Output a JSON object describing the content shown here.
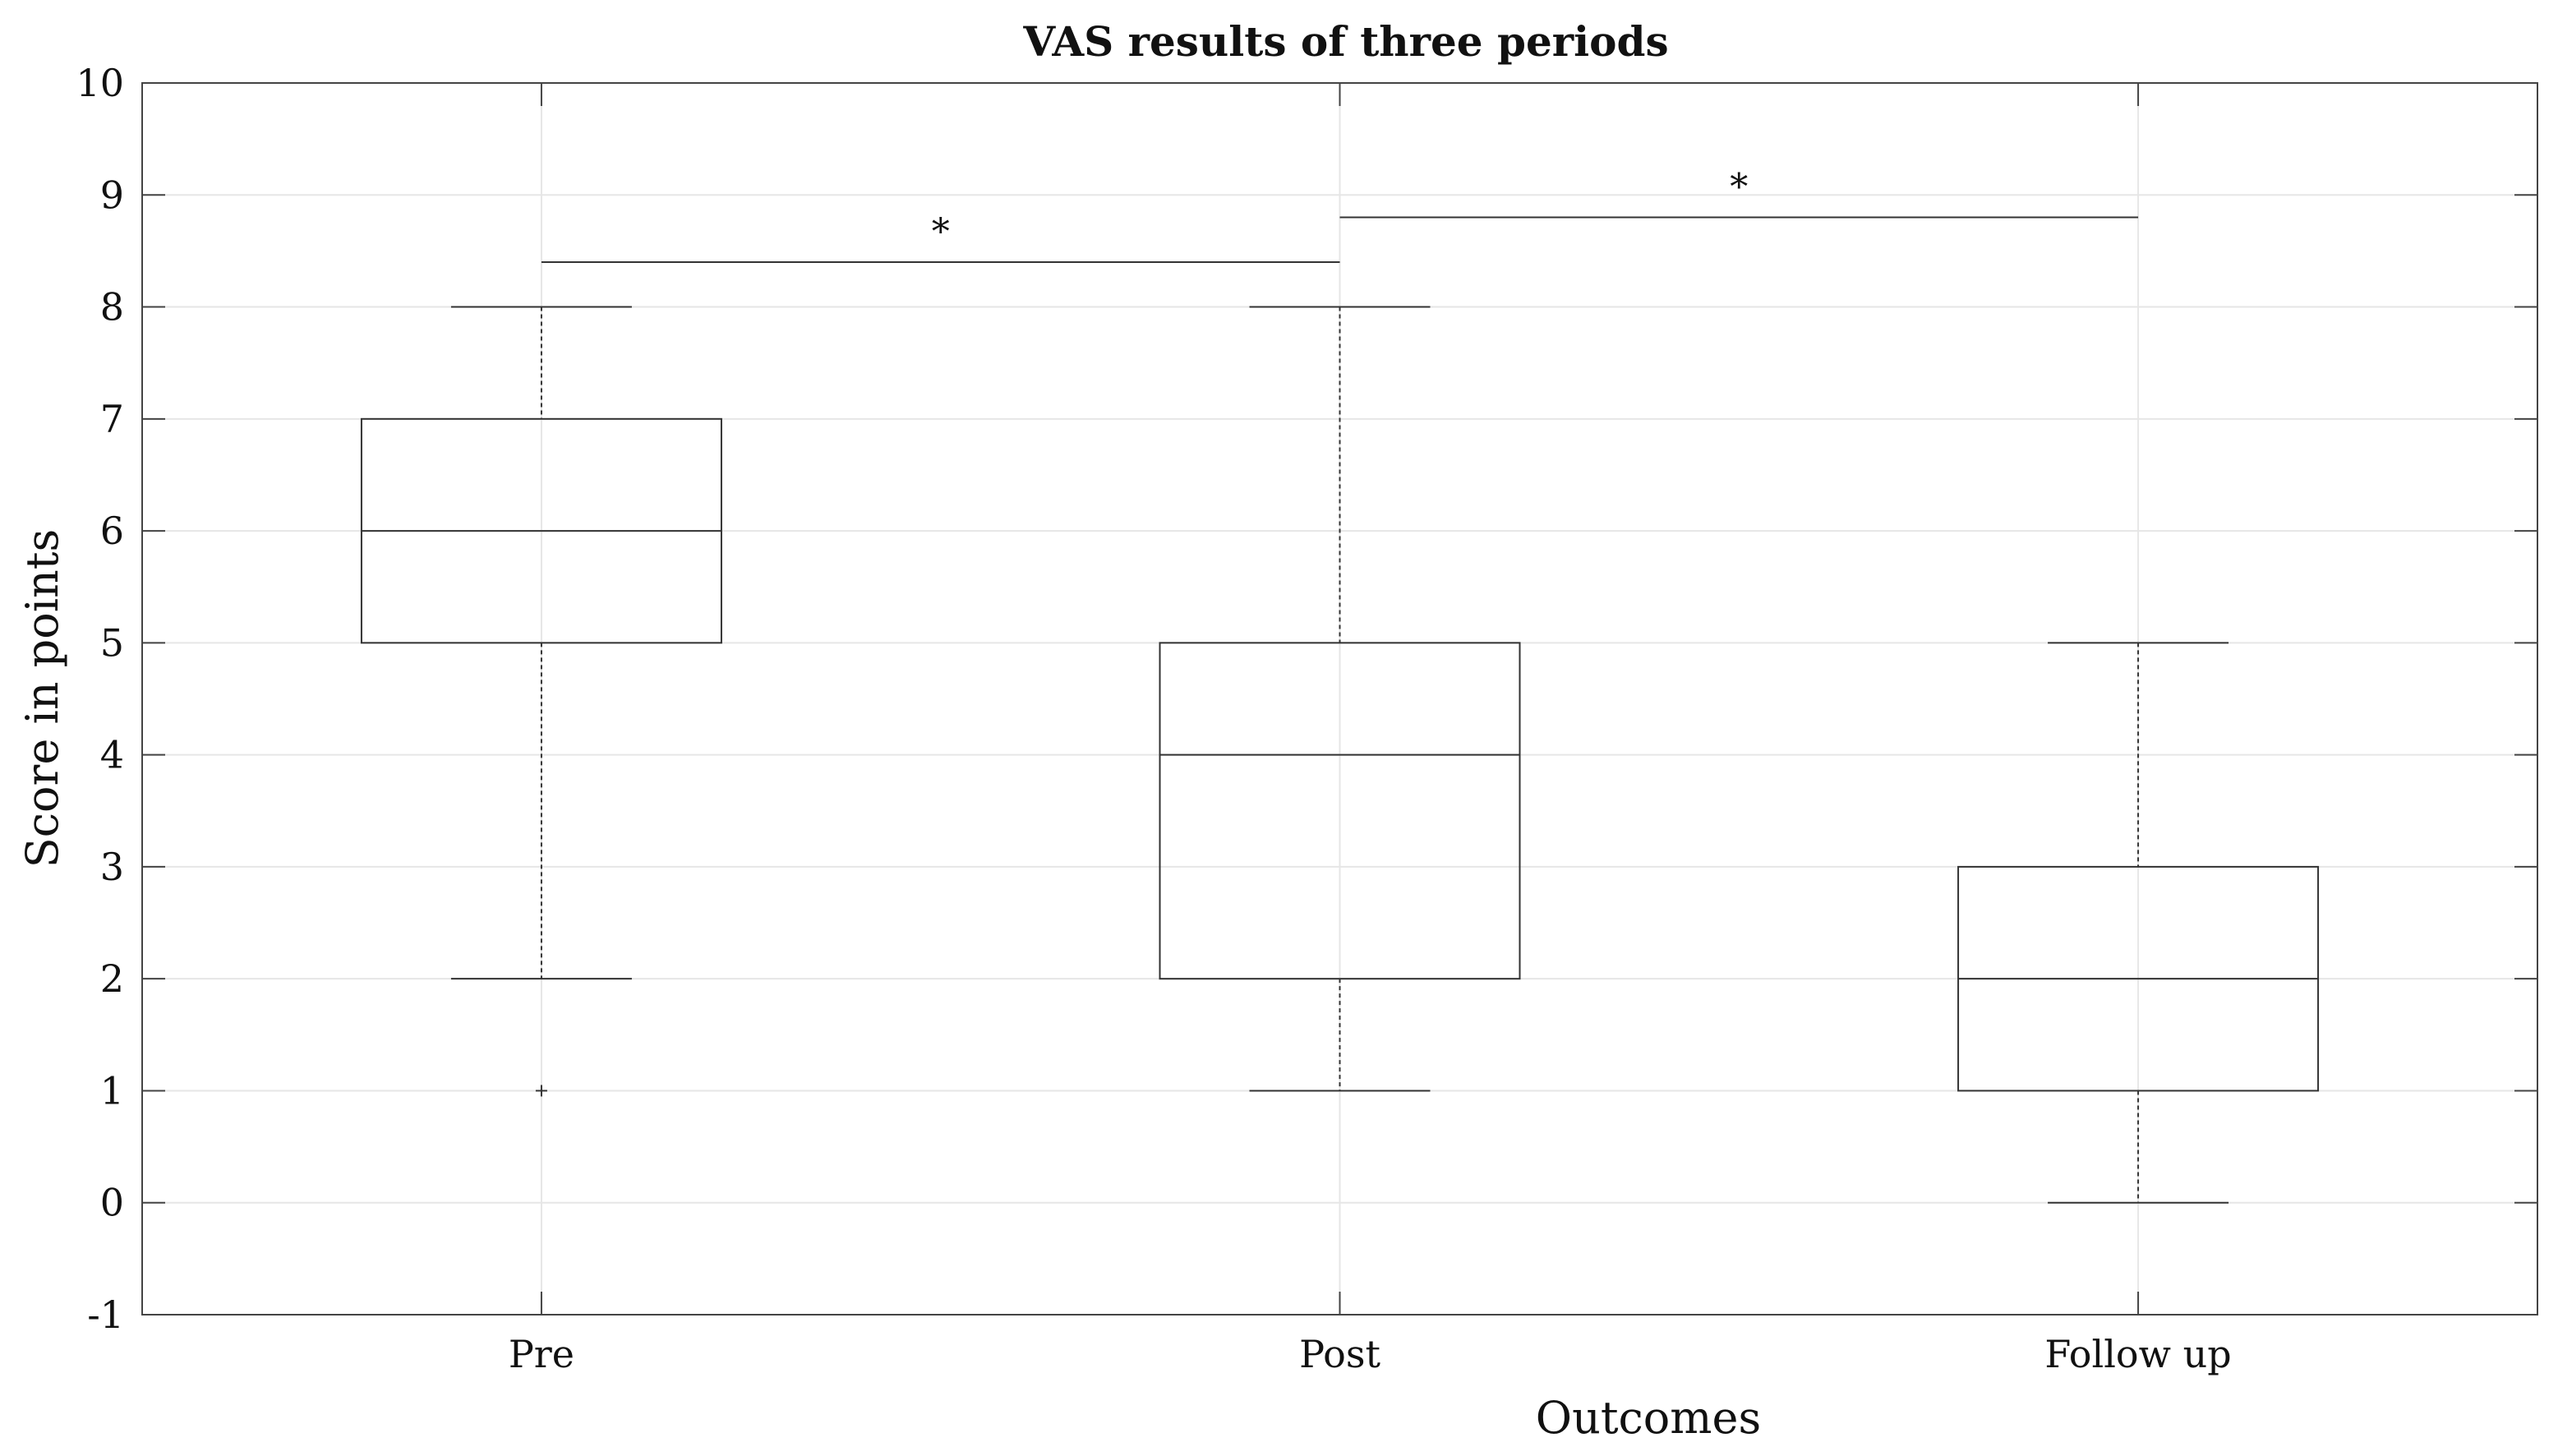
{
  "chart_data": {
    "type": "boxplot",
    "title": "VAS results of three periods",
    "xlabel": "Outcomes",
    "ylabel": "Score in points",
    "ylim": [
      -1,
      10
    ],
    "yticks": [
      -1,
      0,
      1,
      2,
      3,
      4,
      5,
      6,
      7,
      8,
      9,
      10
    ],
    "grid": true,
    "categories": [
      "Pre",
      "Post",
      "Follow  up"
    ],
    "boxes": [
      {
        "label": "Pre",
        "whisker_low": 2,
        "q1": 5,
        "median": 6,
        "q3": 7,
        "whisker_high": 8,
        "outliers": [
          1
        ]
      },
      {
        "label": "Post",
        "whisker_low": 1,
        "q1": 2,
        "median": 4,
        "q3": 5,
        "whisker_high": 8,
        "outliers": []
      },
      {
        "label": "Follow  up",
        "whisker_low": 0,
        "q1": 1,
        "median": 2,
        "q3": 3,
        "whisker_high": 5,
        "outliers": []
      }
    ],
    "significance": [
      {
        "from": "Pre",
        "to": "Post",
        "y": 8.4,
        "label": "*"
      },
      {
        "from": "Post",
        "to": "Follow  up",
        "y": 8.8,
        "label": "*"
      }
    ]
  },
  "colors": {
    "axis": "#444444",
    "grid": "#e6e6e6",
    "box": "#333333",
    "text": "#111111"
  }
}
